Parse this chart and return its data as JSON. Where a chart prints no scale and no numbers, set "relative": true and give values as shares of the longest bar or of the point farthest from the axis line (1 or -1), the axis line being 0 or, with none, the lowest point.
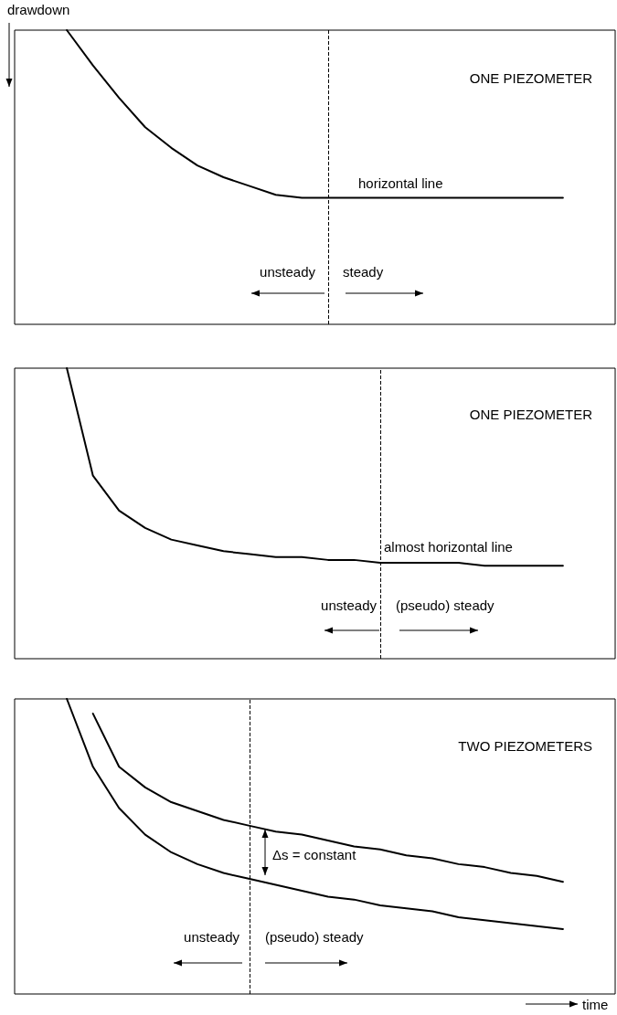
{
  "chart_data": [
    {
      "type": "line",
      "relative": true,
      "ylabel": "drawdown",
      "categories": [
        null,
        null,
        null,
        null,
        null,
        null,
        null,
        null,
        null,
        null,
        null,
        null,
        null,
        null,
        null,
        null,
        null,
        null,
        null,
        null,
        null,
        null,
        null,
        null
      ],
      "series": [
        {
          "color": "#000000",
          "values": [
            null,
            null,
            1.0,
            0.88,
            0.77,
            0.67,
            0.6,
            0.54,
            0.5,
            0.47,
            0.44,
            0.43,
            0.43,
            0.43,
            0.43,
            0.43,
            0.43,
            0.43,
            0.43,
            0.43,
            0.43,
            0.43,
            null,
            null
          ]
        }
      ],
      "annotations": [
        "ONE PIEZOMETER",
        "horizontal line",
        "unsteady",
        "steady"
      ],
      "marker": "none",
      "line_style": "solid",
      "grid": false
    },
    {
      "type": "line",
      "relative": true,
      "categories": [
        null,
        null,
        null,
        null,
        null,
        null,
        null,
        null,
        null,
        null,
        null,
        null,
        null,
        null,
        null,
        null,
        null,
        null,
        null,
        null,
        null,
        null,
        null,
        null
      ],
      "series": [
        {
          "color": "#000000",
          "values": [
            null,
            null,
            1.0,
            0.63,
            0.51,
            0.45,
            0.41,
            0.39,
            0.37,
            0.36,
            0.35,
            0.35,
            0.34,
            0.34,
            0.33,
            0.33,
            0.33,
            0.33,
            0.32,
            0.32,
            0.32,
            0.32,
            null,
            null
          ]
        }
      ],
      "annotations": [
        "ONE PIEZOMETER",
        "almost horizontal line",
        "unsteady",
        "(pseudo) steady"
      ],
      "marker": "none",
      "line_style": "solid",
      "grid": false
    },
    {
      "type": "line",
      "relative": true,
      "xlabel": "time",
      "categories": [
        null,
        null,
        null,
        null,
        null,
        null,
        null,
        null,
        null,
        null,
        null,
        null,
        null,
        null,
        null,
        null,
        null,
        null,
        null,
        null,
        null,
        null,
        null,
        null
      ],
      "series": [
        {
          "color": "#000000",
          "values": [
            null,
            null,
            null,
            0.95,
            0.77,
            0.7,
            0.65,
            0.62,
            0.59,
            0.57,
            0.55,
            0.54,
            0.52,
            0.5,
            0.49,
            0.47,
            0.46,
            0.44,
            0.43,
            0.41,
            0.4,
            0.38,
            null,
            null
          ]
        },
        {
          "color": "#000000",
          "values": [
            null,
            null,
            1.0,
            0.77,
            0.63,
            0.54,
            0.48,
            0.44,
            0.41,
            0.39,
            0.37,
            0.35,
            0.33,
            0.32,
            0.3,
            0.29,
            0.28,
            0.26,
            0.25,
            0.24,
            0.23,
            0.22,
            null,
            null
          ]
        }
      ],
      "annotations": [
        "TWO PIEZOMETERS",
        "Δs = constant",
        "unsteady",
        "(pseudo) steady"
      ],
      "marker": "none",
      "line_style": "solid",
      "grid": false
    }
  ]
}
